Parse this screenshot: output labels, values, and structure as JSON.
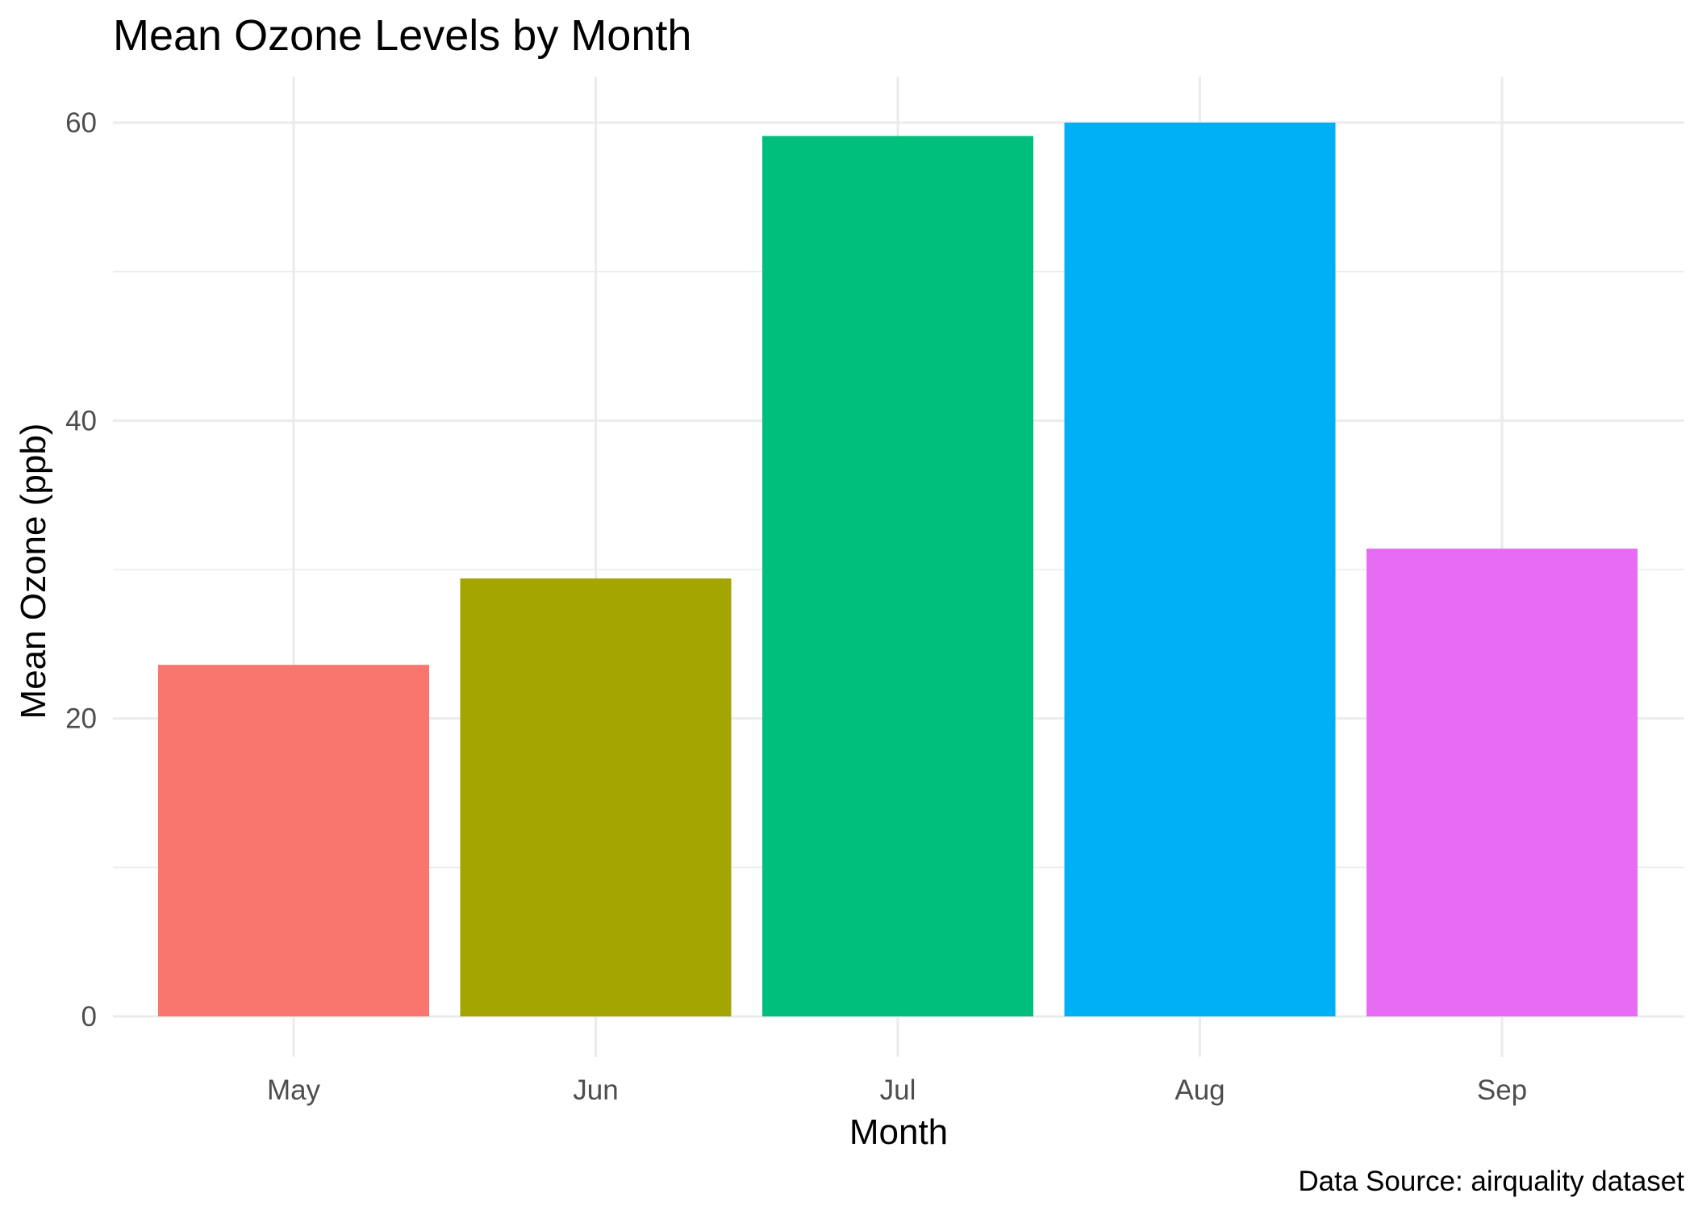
{
  "chart_data": {
    "type": "bar",
    "title": "Mean Ozone Levels by Month",
    "xlabel": "Month",
    "ylabel": "Mean Ozone (ppb)",
    "caption": "Data Source: airquality dataset",
    "categories": [
      "May",
      "Jun",
      "Jul",
      "Aug",
      "Sep"
    ],
    "values": [
      23.6,
      29.4,
      59.1,
      60.0,
      31.4
    ],
    "colors": [
      "#F8766D",
      "#A3A500",
      "#00BF7D",
      "#00B0F6",
      "#E76BF3"
    ],
    "ylim": [
      0,
      63
    ],
    "yticks": [
      0,
      20,
      40,
      60
    ],
    "y_tick_labels": [
      "0",
      "20",
      "40",
      "60"
    ],
    "y_minor_ticks": [
      10,
      30,
      50
    ],
    "grid": true,
    "legend": "none"
  }
}
